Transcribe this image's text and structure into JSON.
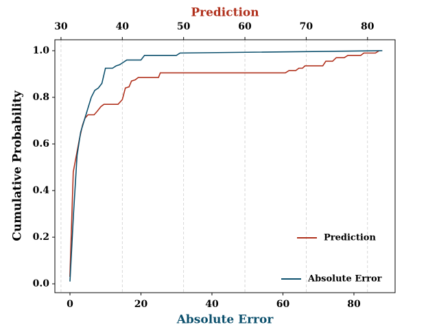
{
  "chart_data": {
    "type": "line",
    "xlabel": "Absolute Error",
    "x2label": "Prediction",
    "ylabel": "Cumulative Probability",
    "xlim": [
      -4.25,
      91.6
    ],
    "xticks": [
      0,
      20,
      40,
      60,
      80
    ],
    "x2lim": [
      29.0,
      84.5
    ],
    "x2ticks": [
      30,
      40,
      50,
      60,
      70,
      80
    ],
    "ylim": [
      -0.038,
      1.047
    ],
    "yticks": [
      {
        "value": 0,
        "label": "0.0"
      },
      {
        "value": 0.2,
        "label": "0.2"
      },
      {
        "value": 0.4,
        "label": "0.4"
      },
      {
        "value": 0.6,
        "label": "0.6"
      },
      {
        "value": 0.8,
        "label": "0.8"
      },
      {
        "value": 1,
        "label": "1.0"
      }
    ],
    "grid": "x2",
    "legend": "lower right",
    "series": [
      {
        "name": "Prediction",
        "color": "#b0301c",
        "axis": "x2",
        "x": [
          31.45,
          32.0,
          32.5,
          33.0,
          33.5,
          33.9,
          34.4,
          35.4,
          35.9,
          36.5,
          37.0,
          39.3,
          40.0,
          40.5,
          41.1,
          41.5,
          42.1,
          42.6,
          45.9,
          46.2,
          66.6,
          67.2,
          68.3,
          68.8,
          69.4,
          69.8,
          72.7,
          73.2,
          74.3,
          74.9,
          76.2,
          76.8,
          78.9,
          79.4,
          81.3,
          81.9
        ],
        "values": [
          0.03,
          0.48,
          0.55,
          0.62,
          0.68,
          0.71,
          0.725,
          0.725,
          0.74,
          0.76,
          0.77,
          0.77,
          0.79,
          0.84,
          0.845,
          0.87,
          0.875,
          0.885,
          0.885,
          0.905,
          0.905,
          0.915,
          0.915,
          0.925,
          0.925,
          0.935,
          0.935,
          0.955,
          0.955,
          0.97,
          0.97,
          0.98,
          0.98,
          0.99,
          0.99,
          1.0
        ]
      },
      {
        "name": "Absolute Error",
        "color": "#0b4f6c",
        "x": [
          0,
          1,
          2,
          3,
          4,
          5,
          6,
          7,
          8,
          9,
          10,
          12,
          13,
          14,
          15,
          16,
          20,
          21,
          30,
          31,
          88
        ],
        "values": [
          0.01,
          0.3,
          0.55,
          0.65,
          0.7,
          0.75,
          0.8,
          0.83,
          0.84,
          0.86,
          0.925,
          0.925,
          0.935,
          0.94,
          0.95,
          0.96,
          0.96,
          0.98,
          0.98,
          0.99,
          1.0
        ]
      }
    ]
  }
}
